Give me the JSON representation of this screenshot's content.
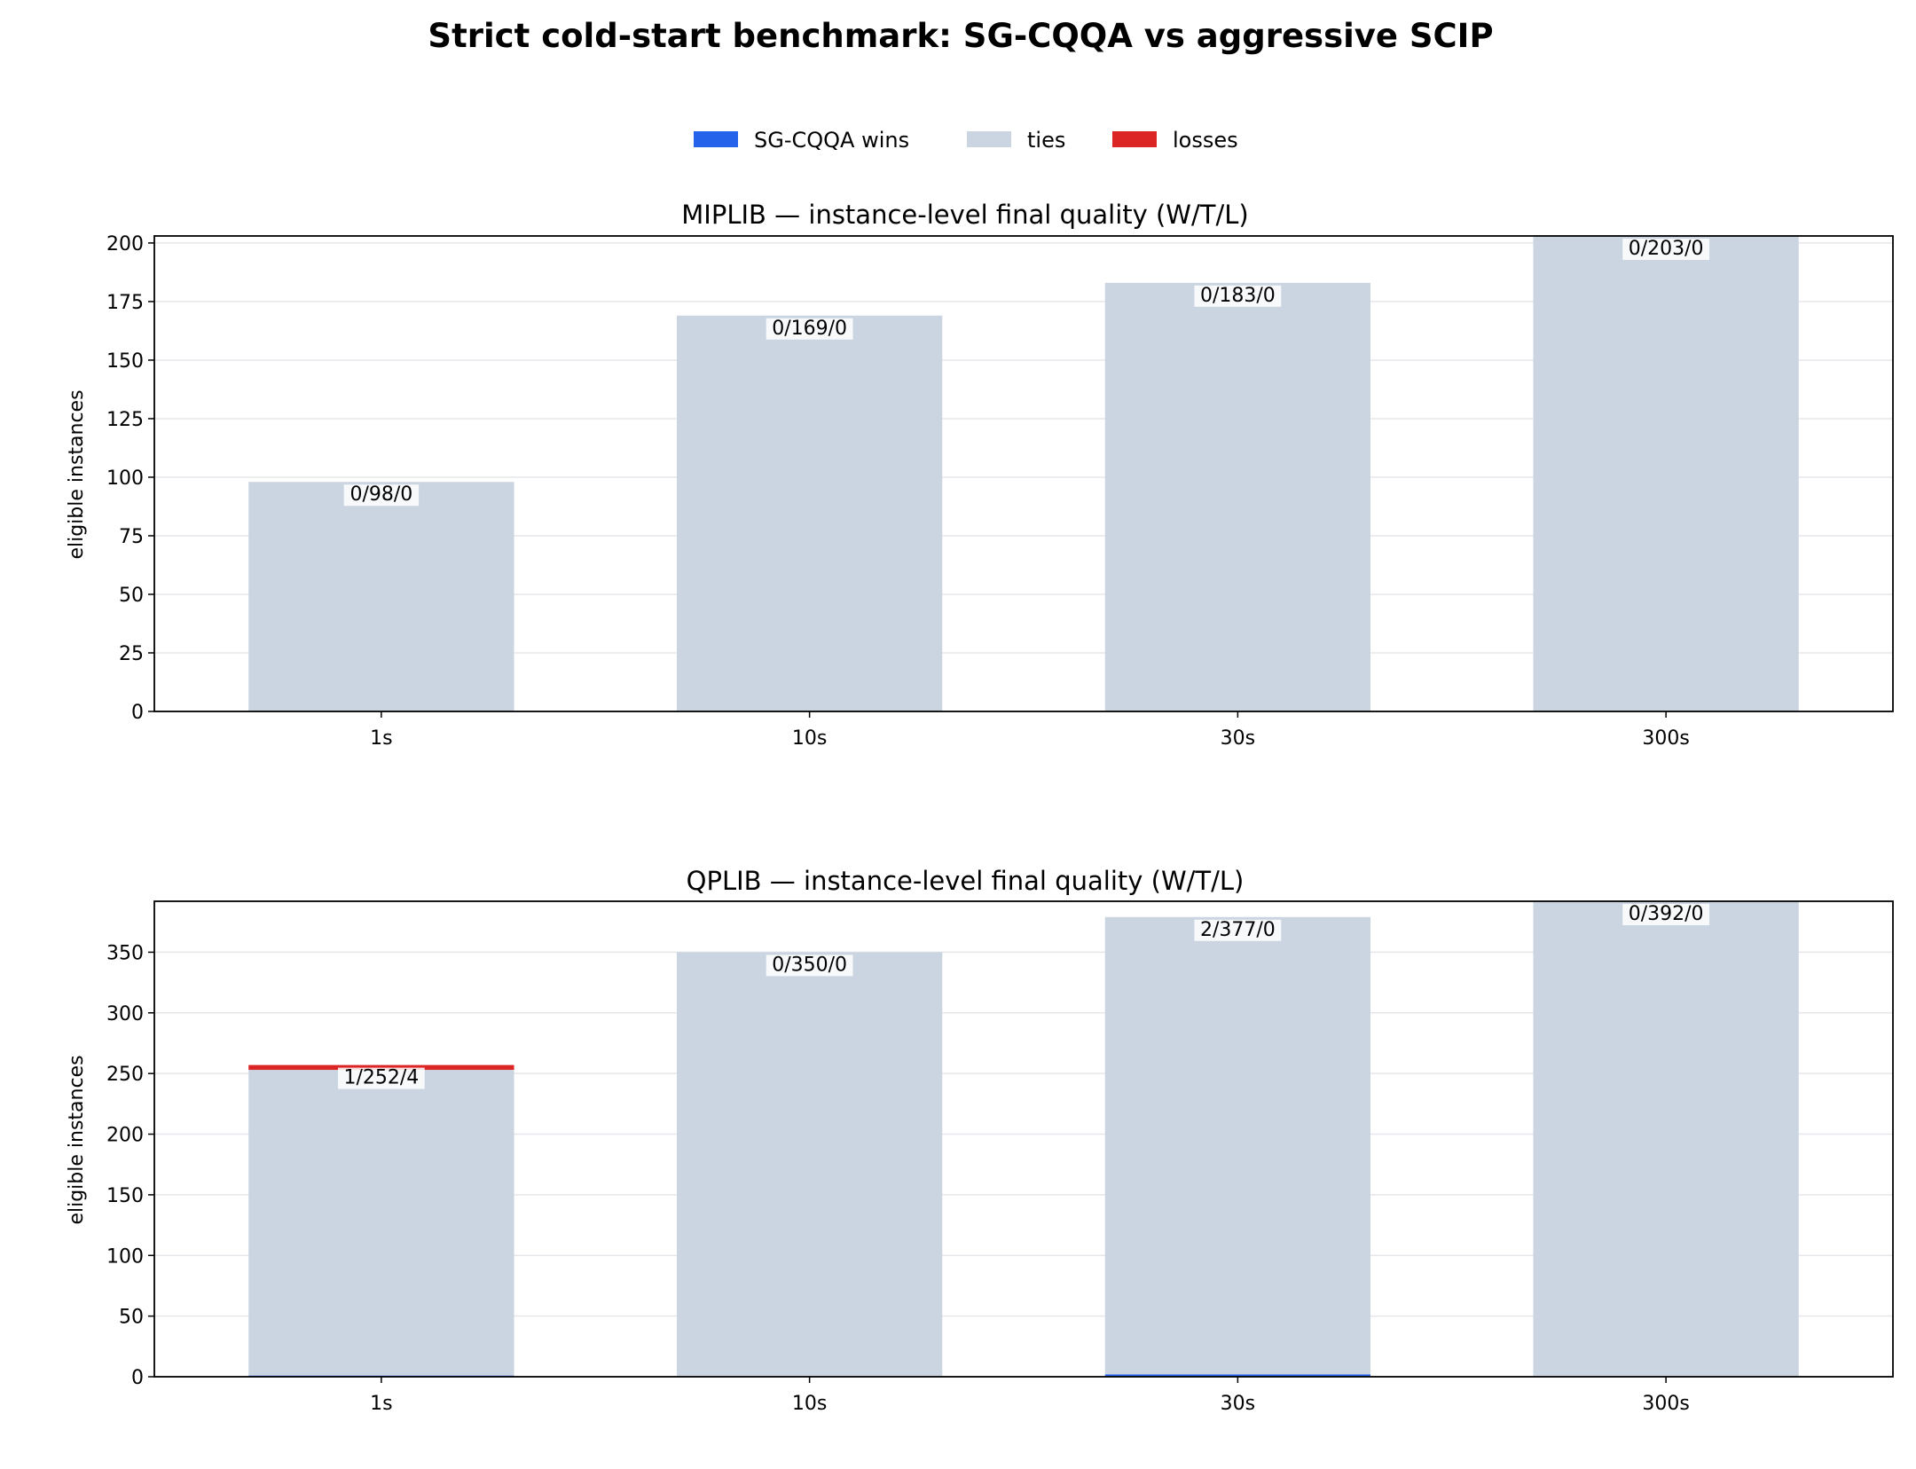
{
  "title": "Strict cold-start benchmark: SG-CQQA vs aggressive SCIP",
  "legend": {
    "placement": "top-center",
    "items": [
      {
        "label": "SG-CQQA wins",
        "color": "#2563eb"
      },
      {
        "label": "ties",
        "color": "#cbd5e1"
      },
      {
        "label": "losses",
        "color": "#dc2626"
      }
    ]
  },
  "chart_data": [
    {
      "type": "bar",
      "stacked": true,
      "title": "MIPLIB — instance-level final quality (W/T/L)",
      "ylabel": "eligible instances",
      "xlabel": "",
      "categories": [
        "1s",
        "10s",
        "30s",
        "300s"
      ],
      "series": [
        {
          "name": "SG-CQQA wins",
          "color": "#2563eb",
          "values": [
            0,
            0,
            0,
            0
          ]
        },
        {
          "name": "ties",
          "color": "#cbd5e1",
          "values": [
            98,
            169,
            183,
            203
          ]
        },
        {
          "name": "losses",
          "color": "#dc2626",
          "values": [
            0,
            0,
            0,
            0
          ]
        }
      ],
      "bar_labels": [
        "0/98/0",
        "0/169/0",
        "0/183/0",
        "0/203/0"
      ],
      "ylim": [
        0,
        203
      ],
      "yticks": [
        0,
        25,
        50,
        75,
        100,
        125,
        150,
        175,
        200
      ],
      "grid": "y"
    },
    {
      "type": "bar",
      "stacked": true,
      "title": "QPLIB — instance-level final quality (W/T/L)",
      "ylabel": "eligible instances",
      "xlabel": "",
      "categories": [
        "1s",
        "10s",
        "30s",
        "300s"
      ],
      "series": [
        {
          "name": "SG-CQQA wins",
          "color": "#2563eb",
          "values": [
            1,
            0,
            2,
            0
          ]
        },
        {
          "name": "ties",
          "color": "#cbd5e1",
          "values": [
            252,
            350,
            377,
            392
          ]
        },
        {
          "name": "losses",
          "color": "#dc2626",
          "values": [
            4,
            0,
            0,
            0
          ]
        }
      ],
      "bar_labels": [
        "1/252/4",
        "0/350/0",
        "2/377/0",
        "0/392/0"
      ],
      "ylim": [
        0,
        392
      ],
      "yticks": [
        0,
        50,
        100,
        150,
        200,
        250,
        300,
        350
      ],
      "grid": "y"
    }
  ]
}
